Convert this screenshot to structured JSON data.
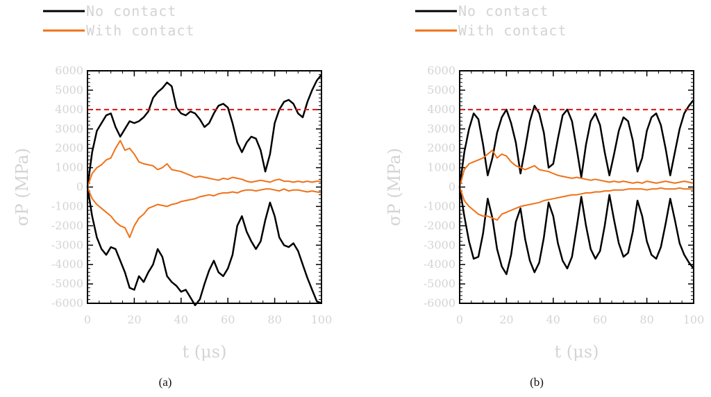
{
  "colors": {
    "no_contact": "#000000",
    "with_contact": "#f07015",
    "threshold": "#e01010",
    "label_gray": "#d4d4d4"
  },
  "chart_data": [
    {
      "type": "line",
      "panel_label": "(a)",
      "xlabel": "t  (μs)",
      "ylabel": "σP  (MPa)",
      "xlim": [
        0,
        100
      ],
      "ylim": [
        -6000,
        6000
      ],
      "xticks": [
        "0",
        "20",
        "40",
        "60",
        "80",
        "100"
      ],
      "yticks": [
        "6000",
        "5000",
        "4000",
        "3000",
        "2000",
        "1000",
        "0",
        "-1000",
        "-2000",
        "-3000",
        "-4000",
        "-5000",
        "-6000"
      ],
      "legend": [
        "No contact",
        "With contact"
      ],
      "legend_position": "top-left, above plot",
      "threshold_line": {
        "y": 4000,
        "style": "dashed"
      },
      "series": [
        {
          "name": "No contact",
          "group": "upper",
          "x": [
            0,
            2,
            4,
            6,
            8,
            10,
            12,
            14,
            16,
            18,
            20,
            22,
            24,
            26,
            28,
            30,
            32,
            34,
            36,
            38,
            40,
            42,
            44,
            46,
            48,
            50,
            52,
            54,
            56,
            58,
            60,
            62,
            64,
            66,
            68,
            70,
            72,
            74,
            76,
            78,
            80,
            82,
            84,
            86,
            88,
            90,
            92,
            94,
            96,
            98,
            100
          ],
          "values": [
            0,
            1800,
            2900,
            3300,
            3700,
            3800,
            3100,
            2600,
            3000,
            3400,
            3300,
            3400,
            3600,
            3900,
            4600,
            4900,
            5100,
            5400,
            5200,
            4100,
            3800,
            3700,
            3900,
            3800,
            3500,
            3100,
            3300,
            3800,
            4200,
            4300,
            4100,
            3300,
            2300,
            1800,
            2300,
            2600,
            2500,
            1900,
            800,
            1700,
            3300,
            4000,
            4400,
            4500,
            4300,
            3800,
            3600,
            4400,
            5000,
            5500,
            5800
          ]
        },
        {
          "name": "No contact",
          "group": "lower",
          "x": [
            0,
            2,
            4,
            6,
            8,
            10,
            12,
            14,
            16,
            18,
            20,
            22,
            24,
            26,
            28,
            30,
            32,
            34,
            36,
            38,
            40,
            42,
            44,
            46,
            48,
            50,
            52,
            54,
            56,
            58,
            60,
            62,
            64,
            66,
            68,
            70,
            72,
            74,
            76,
            78,
            80,
            82,
            84,
            86,
            88,
            90,
            92,
            94,
            96,
            98,
            100
          ],
          "values": [
            0,
            -1500,
            -2600,
            -3200,
            -3500,
            -3100,
            -3200,
            -3800,
            -4400,
            -5200,
            -5300,
            -4600,
            -4900,
            -4400,
            -4000,
            -3200,
            -3600,
            -4600,
            -4900,
            -5100,
            -5400,
            -5300,
            -5700,
            -6100,
            -5800,
            -5000,
            -4300,
            -3800,
            -4400,
            -4600,
            -4200,
            -3500,
            -2000,
            -1500,
            -2300,
            -2800,
            -3200,
            -2800,
            -1700,
            -800,
            -1500,
            -2600,
            -3000,
            -3100,
            -2900,
            -3300,
            -4000,
            -4700,
            -5300,
            -5900,
            -6000
          ]
        },
        {
          "name": "With contact",
          "group": "upper",
          "x": [
            0,
            2,
            4,
            6,
            8,
            10,
            12,
            14,
            16,
            18,
            20,
            22,
            24,
            26,
            28,
            30,
            32,
            34,
            36,
            38,
            40,
            42,
            44,
            46,
            48,
            50,
            52,
            54,
            56,
            58,
            60,
            62,
            64,
            66,
            68,
            70,
            72,
            74,
            76,
            78,
            80,
            82,
            84,
            86,
            88,
            90,
            92,
            94,
            96,
            98,
            100
          ],
          "values": [
            0,
            700,
            1000,
            1150,
            1400,
            1500,
            2000,
            2400,
            1900,
            2000,
            1700,
            1300,
            1200,
            1150,
            1100,
            900,
            1000,
            1200,
            900,
            850,
            800,
            700,
            600,
            500,
            550,
            500,
            450,
            400,
            350,
            450,
            400,
            500,
            450,
            400,
            300,
            250,
            300,
            350,
            300,
            250,
            350,
            400,
            300,
            300,
            250,
            300,
            250,
            300,
            250,
            300,
            300
          ]
        },
        {
          "name": "With contact",
          "group": "lower",
          "x": [
            0,
            2,
            4,
            6,
            8,
            10,
            12,
            14,
            16,
            18,
            20,
            22,
            24,
            26,
            28,
            30,
            32,
            34,
            36,
            38,
            40,
            42,
            44,
            46,
            48,
            50,
            52,
            54,
            56,
            58,
            60,
            62,
            64,
            66,
            68,
            70,
            72,
            74,
            76,
            78,
            80,
            82,
            84,
            86,
            88,
            90,
            92,
            94,
            96,
            98,
            100
          ],
          "values": [
            0,
            -600,
            -900,
            -1100,
            -1300,
            -1500,
            -1800,
            -2000,
            -2100,
            -2600,
            -2000,
            -1600,
            -1400,
            -1100,
            -1000,
            -900,
            -950,
            -1000,
            -900,
            -850,
            -750,
            -700,
            -650,
            -600,
            -500,
            -450,
            -400,
            -450,
            -350,
            -300,
            -300,
            -250,
            -300,
            -200,
            -150,
            -150,
            -200,
            -150,
            -100,
            -100,
            -150,
            -200,
            -100,
            -200,
            -150,
            -150,
            -200,
            -250,
            -200,
            -250,
            -300
          ]
        }
      ]
    },
    {
      "type": "line",
      "panel_label": "(b)",
      "xlabel": "t  (μs)",
      "ylabel": "σP  (MPa)",
      "xlim": [
        0,
        100
      ],
      "ylim": [
        -6000,
        6000
      ],
      "xticks": [
        "0",
        "20",
        "40",
        "60",
        "80",
        "100"
      ],
      "yticks": [
        "6000",
        "5000",
        "4000",
        "3000",
        "2000",
        "1000",
        "0",
        "-1000",
        "-2000",
        "-3000",
        "-4000",
        "-5000",
        "-6000"
      ],
      "legend": [
        "No contact",
        "With contact"
      ],
      "legend_position": "top-left, above plot",
      "threshold_line": {
        "y": 4000,
        "style": "dashed"
      },
      "series": [
        {
          "name": "No contact",
          "group": "upper",
          "x": [
            0,
            2,
            4,
            6,
            8,
            10,
            12,
            14,
            16,
            18,
            20,
            22,
            24,
            26,
            28,
            30,
            32,
            34,
            36,
            38,
            40,
            42,
            44,
            46,
            48,
            50,
            52,
            54,
            56,
            58,
            60,
            62,
            64,
            66,
            68,
            70,
            72,
            74,
            76,
            78,
            80,
            82,
            84,
            86,
            88,
            90,
            92,
            94,
            96,
            98,
            100
          ],
          "values": [
            0,
            1800,
            3000,
            3800,
            3500,
            2200,
            600,
            1500,
            2800,
            3600,
            4000,
            3300,
            2300,
            700,
            2000,
            3400,
            4200,
            3800,
            2800,
            1000,
            1200,
            2500,
            3700,
            4000,
            3400,
            2000,
            500,
            2200,
            3400,
            3800,
            3200,
            1800,
            600,
            1700,
            2900,
            3600,
            3400,
            2400,
            800,
            1500,
            2900,
            3600,
            3800,
            3200,
            2000,
            600,
            1800,
            3000,
            3800,
            4200,
            4500
          ]
        },
        {
          "name": "No contact",
          "group": "lower",
          "x": [
            0,
            2,
            4,
            6,
            8,
            10,
            12,
            14,
            16,
            18,
            20,
            22,
            24,
            26,
            28,
            30,
            32,
            34,
            36,
            38,
            40,
            42,
            44,
            46,
            48,
            50,
            52,
            54,
            56,
            58,
            60,
            62,
            64,
            66,
            68,
            70,
            72,
            74,
            76,
            78,
            80,
            82,
            84,
            86,
            88,
            90,
            92,
            94,
            96,
            98,
            100
          ],
          "values": [
            0,
            -1500,
            -2800,
            -3700,
            -3600,
            -2400,
            -600,
            -1600,
            -3200,
            -4100,
            -4500,
            -3500,
            -1800,
            -1100,
            -2700,
            -3800,
            -4400,
            -3900,
            -2600,
            -800,
            -1500,
            -2900,
            -3800,
            -4200,
            -3600,
            -2100,
            -500,
            -2000,
            -3200,
            -3700,
            -3300,
            -2000,
            -400,
            -1700,
            -2900,
            -3600,
            -3400,
            -2300,
            -700,
            -1500,
            -2800,
            -3500,
            -3700,
            -3100,
            -1900,
            -600,
            -1700,
            -2900,
            -3500,
            -3900,
            -4200
          ]
        },
        {
          "name": "With contact",
          "group": "upper",
          "x": [
            0,
            2,
            4,
            6,
            8,
            10,
            12,
            14,
            16,
            18,
            20,
            22,
            24,
            26,
            28,
            30,
            32,
            34,
            36,
            38,
            40,
            42,
            44,
            46,
            48,
            50,
            52,
            54,
            56,
            58,
            60,
            62,
            64,
            66,
            68,
            70,
            72,
            74,
            76,
            78,
            80,
            82,
            84,
            86,
            88,
            90,
            92,
            94,
            96,
            98,
            100
          ],
          "values": [
            0,
            900,
            1200,
            1300,
            1400,
            1500,
            1700,
            1900,
            1500,
            1700,
            1600,
            1300,
            1100,
            1000,
            900,
            1000,
            1100,
            900,
            850,
            800,
            700,
            600,
            550,
            500,
            450,
            500,
            450,
            400,
            350,
            400,
            350,
            300,
            250,
            300,
            250,
            300,
            250,
            200,
            250,
            200,
            300,
            250,
            200,
            250,
            300,
            250,
            200,
            250,
            300,
            250,
            200
          ]
        },
        {
          "name": "With contact",
          "group": "lower",
          "x": [
            0,
            2,
            4,
            6,
            8,
            10,
            12,
            14,
            16,
            18,
            20,
            22,
            24,
            26,
            28,
            30,
            32,
            34,
            36,
            38,
            40,
            42,
            44,
            46,
            48,
            50,
            52,
            54,
            56,
            58,
            60,
            62,
            64,
            66,
            68,
            70,
            72,
            74,
            76,
            78,
            80,
            82,
            84,
            86,
            88,
            90,
            92,
            94,
            96,
            98,
            100
          ],
          "values": [
            0,
            -700,
            -1000,
            -1200,
            -1400,
            -1500,
            -1500,
            -1600,
            -1700,
            -1400,
            -1300,
            -1200,
            -1100,
            -1000,
            -950,
            -900,
            -850,
            -800,
            -700,
            -650,
            -600,
            -550,
            -500,
            -450,
            -400,
            -400,
            -350,
            -300,
            -300,
            -250,
            -250,
            -200,
            -200,
            -150,
            -150,
            -150,
            -100,
            -100,
            -100,
            -100,
            -150,
            -100,
            -100,
            -50,
            -100,
            -100,
            -100,
            -50,
            -100,
            -100,
            -100
          ]
        }
      ]
    }
  ]
}
